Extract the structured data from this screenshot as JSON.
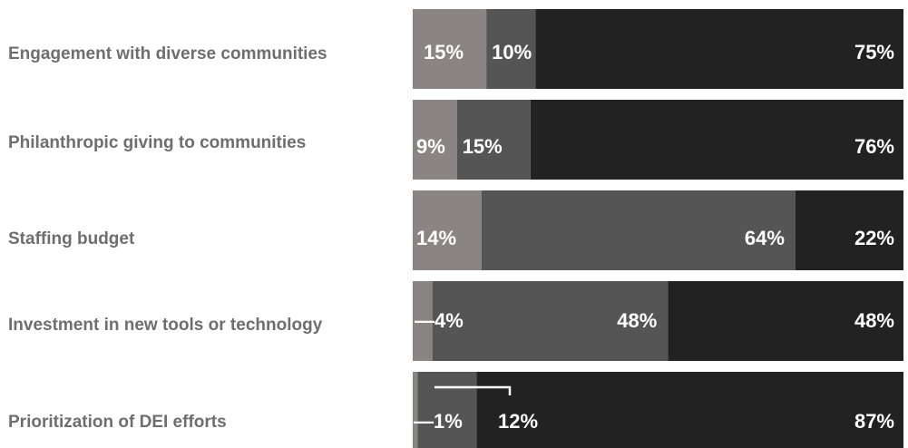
{
  "chart_data": {
    "type": "bar",
    "orientation": "horizontal",
    "stacked": true,
    "title": "",
    "xlabel": "",
    "ylabel": "",
    "xlim": [
      0,
      100
    ],
    "legend": "none",
    "grid": false,
    "categories": [
      "Engagement with diverse communities",
      "Philanthropic giving to communities",
      "Staffing budget",
      "Investment in new tools or technology",
      "Prioritization of DEI efforts"
    ],
    "series": [
      {
        "values": [
          15,
          9,
          14,
          4,
          1
        ],
        "color": "#8a8584"
      },
      {
        "values": [
          10,
          15,
          64,
          48,
          12
        ],
        "color": "#555555"
      },
      {
        "values": [
          75,
          76,
          22,
          48,
          87
        ],
        "color": "#222222"
      }
    ],
    "data_labels": [
      [
        "15%",
        "10%",
        "75%"
      ],
      [
        "9%",
        "15%",
        "76%"
      ],
      [
        "14%",
        "64%",
        "22%"
      ],
      [
        "—4%",
        "48%",
        "48%"
      ],
      [
        "—1%",
        "12%",
        "87%"
      ]
    ]
  }
}
